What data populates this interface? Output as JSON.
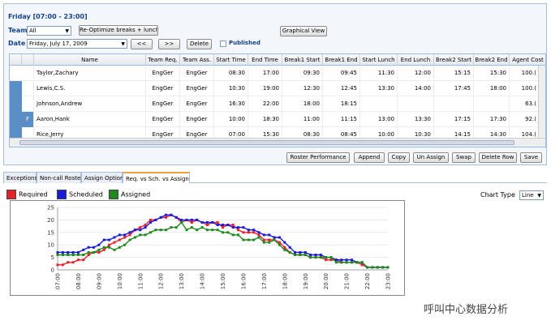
{
  "title": "Friday [07:00 - 23:00]",
  "team": {
    "label": "Team",
    "value": "All",
    "reoptimize": "Re-Optimize breaks + lunch",
    "graphical": "Graphical View"
  },
  "date": {
    "label": "Date",
    "value": "Friday, July 17, 2009",
    "prev": "<<",
    "next": ">>",
    "delete": "Delete",
    "published": "Published"
  },
  "grid": {
    "columns": [
      "Name",
      "Team Req.",
      "Team Ass.",
      "Start Time",
      "End Time",
      "Break1 Start",
      "Break1 End",
      "Start Lunch",
      "End Lunch",
      "Break2 Start",
      "Break2 End",
      "Agent Cost"
    ],
    "rows": [
      {
        "flag": "",
        "name": "Taylor,Zachary",
        "req": "EngGer",
        "ass": "EngGer",
        "st": "08:30",
        "et": "17:00",
        "b1s": "09:30",
        "b1e": "09:45",
        "sl": "11:30",
        "el": "12:00",
        "b2s": "15:15",
        "b2e": "15:30",
        "cost": "100.("
      },
      {
        "flag": "",
        "name": "Lewis,C.S.",
        "req": "EngGer",
        "ass": "EngGer",
        "st": "10:30",
        "et": "19:00",
        "b1s": "12:30",
        "b1e": "12:45",
        "sl": "13:30",
        "el": "14:00",
        "b2s": "17:45",
        "b2e": "18:00",
        "cost": "100.("
      },
      {
        "flag": "",
        "name": "Johnson,Andrew",
        "req": "EngGer",
        "ass": "EngGer",
        "st": "16:30",
        "et": "22:00",
        "b1s": "18:00",
        "b1e": "18:15",
        "sl": "",
        "el": "",
        "b2s": "",
        "b2e": "",
        "cost": "63.("
      },
      {
        "flag": "F",
        "name": "Aaron,Hank",
        "req": "EngGer",
        "ass": "EngGer",
        "st": "10:00",
        "et": "18:30",
        "b1s": "11:00",
        "b1e": "11:15",
        "sl": "13:00",
        "el": "13:30",
        "b2s": "17:15",
        "b2e": "17:30",
        "cost": "92.("
      },
      {
        "flag": "",
        "name": "Rice,Jerry",
        "req": "EngGer",
        "ass": "EngGer",
        "st": "07:00",
        "et": "15:30",
        "b1s": "08:30",
        "b1e": "08:45",
        "sl": "10:00",
        "el": "10:30",
        "b2s": "14:15",
        "b2e": "14:30",
        "cost": "104.("
      }
    ],
    "marked_rows": [
      1,
      2,
      3,
      4
    ]
  },
  "actions": {
    "roster": "Roster Performance",
    "append": "Append",
    "copy": "Copy",
    "unassign": "Un Assign",
    "swap": "Swap",
    "deleterow": "Delete Row",
    "save": "Save"
  },
  "tabs": [
    "Exceptions",
    "Non-call Roster",
    "Assign Option",
    "Req. vs Sch. vs Assign"
  ],
  "chart_type": {
    "label": "Chart Type",
    "value": "Line"
  },
  "watermark": "呼叫中心数据分析",
  "colors": {
    "required": "#e8202a",
    "scheduled": "#1a1adb",
    "assigned": "#1e8a1e"
  },
  "chart_data": {
    "type": "line",
    "x": [
      "07:00",
      "07:15",
      "07:30",
      "07:45",
      "08:00",
      "08:15",
      "08:30",
      "08:45",
      "09:00",
      "09:15",
      "09:30",
      "09:45",
      "10:00",
      "10:15",
      "10:30",
      "10:45",
      "11:00",
      "11:15",
      "11:30",
      "11:45",
      "12:00",
      "12:15",
      "12:30",
      "12:45",
      "13:00",
      "13:15",
      "13:30",
      "13:45",
      "14:00",
      "14:15",
      "14:30",
      "14:45",
      "15:00",
      "15:15",
      "15:30",
      "15:45",
      "16:00",
      "16:15",
      "16:30",
      "16:45",
      "17:00",
      "17:15",
      "17:30",
      "17:45",
      "18:00",
      "18:15",
      "18:30",
      "18:45",
      "19:00",
      "19:15",
      "19:30",
      "19:45",
      "20:00",
      "20:15",
      "20:30",
      "20:45",
      "21:00",
      "21:15",
      "21:30",
      "21:45",
      "22:00",
      "22:15",
      "22:30",
      "22:45",
      "23:00"
    ],
    "xticks": [
      "07:00",
      "08:00",
      "09:00",
      "10:00",
      "11:00",
      "12:00",
      "13:00",
      "14:00",
      "15:00",
      "16:00",
      "17:00",
      "18:00",
      "19:00",
      "20:00",
      "21:00",
      "22:00",
      "23:00"
    ],
    "ylim": [
      0,
      25
    ],
    "yticks": [
      0,
      5,
      10,
      15,
      20,
      25
    ],
    "series": [
      {
        "name": "Required",
        "values": [
          2,
          2,
          3,
          3,
          4,
          4,
          6,
          7,
          7,
          8,
          10,
          11,
          12,
          13,
          14,
          16,
          17,
          18,
          20,
          20,
          21,
          21,
          22,
          21,
          19,
          20,
          19,
          20,
          19,
          18,
          19,
          19,
          17,
          18,
          18,
          16,
          15,
          15,
          15,
          14,
          12,
          12,
          12,
          11,
          9,
          7,
          6,
          6,
          6,
          5,
          5,
          5,
          4,
          4,
          4,
          3,
          3,
          3,
          3,
          2,
          1,
          1,
          1,
          1,
          1
        ]
      },
      {
        "name": "Scheduled",
        "values": [
          7,
          7,
          7,
          7,
          7,
          8,
          9,
          9,
          10,
          12,
          12,
          13,
          14,
          14,
          15,
          16,
          16,
          17,
          19,
          20,
          21,
          22,
          22,
          21,
          20,
          20,
          20,
          20,
          19,
          19,
          19,
          18,
          18,
          18,
          17,
          17,
          17,
          16,
          16,
          15,
          14,
          14,
          13,
          13,
          11,
          9,
          7,
          7,
          7,
          6,
          6,
          6,
          5,
          5,
          4,
          4,
          4,
          4,
          3,
          3,
          1,
          1,
          1,
          1,
          1
        ]
      },
      {
        "name": "Assigned",
        "values": [
          6,
          6,
          6,
          6,
          6,
          6,
          7,
          7,
          8,
          9,
          9,
          8,
          9,
          10,
          12,
          13,
          14,
          14,
          15,
          16,
          16,
          16,
          17,
          17,
          19,
          16,
          17,
          16,
          17,
          16,
          16,
          16,
          15,
          15,
          14,
          14,
          12,
          12,
          12,
          13,
          11,
          11,
          12,
          10,
          8,
          7,
          6,
          6,
          6,
          5,
          5,
          5,
          5,
          5,
          3,
          3,
          3,
          3,
          3,
          3,
          1,
          1,
          1,
          1,
          1
        ]
      }
    ],
    "legend_position": "top-left"
  }
}
